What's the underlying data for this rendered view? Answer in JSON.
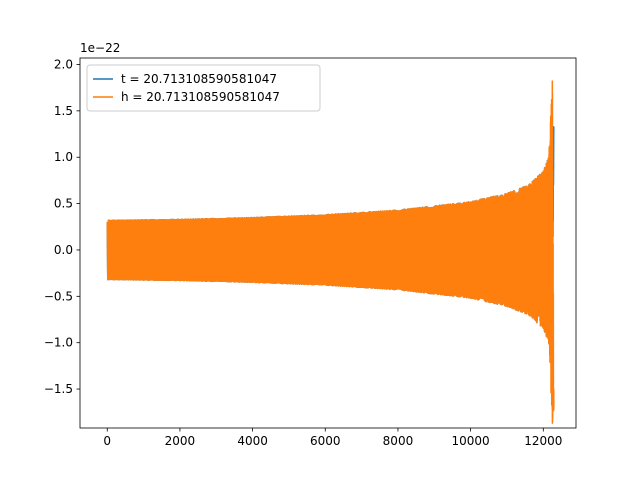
{
  "chart_data": {
    "type": "line",
    "title": "",
    "xlabel": "",
    "ylabel": "",
    "y_offset_label": "1e−22",
    "xlim": [
      -750,
      12900
    ],
    "ylim": [
      -1.92,
      2.07
    ],
    "x_ticks": [
      0,
      2000,
      4000,
      6000,
      8000,
      10000,
      12000
    ],
    "x_tick_labels": [
      "0",
      "2000",
      "4000",
      "6000",
      "8000",
      "10000",
      "12000"
    ],
    "y_ticks": [
      -1.5,
      -1.0,
      -0.5,
      0.0,
      0.5,
      1.0,
      1.5,
      2.0
    ],
    "y_tick_labels": [
      "−1.5",
      "−1.0",
      "−0.5",
      "0.0",
      "0.5",
      "1.0",
      "1.5",
      "2.0"
    ],
    "grid": false,
    "legend_position": "top-left",
    "series": [
      {
        "name": "t = 20.713108590581047",
        "color": "#1f77b4",
        "envelope": {
          "x": [
            0,
            2000,
            4000,
            6000,
            8000,
            10000,
            11000,
            11600,
            12000,
            12150,
            12250,
            12290
          ],
          "amplitude": [
            0.32,
            0.33,
            0.35,
            0.38,
            0.43,
            0.52,
            0.61,
            0.7,
            0.85,
            1.0,
            1.33,
            1.33
          ]
        }
      },
      {
        "name": "h = 20.713108590581047",
        "color": "#ff7f0e",
        "envelope": {
          "x": [
            0,
            2000,
            4000,
            6000,
            8000,
            10000,
            11000,
            11600,
            12000,
            12150,
            12250,
            12290
          ],
          "amplitude": [
            0.32,
            0.33,
            0.35,
            0.38,
            0.43,
            0.52,
            0.61,
            0.7,
            0.85,
            1.0,
            1.87,
            -1.72
          ]
        }
      }
    ]
  }
}
